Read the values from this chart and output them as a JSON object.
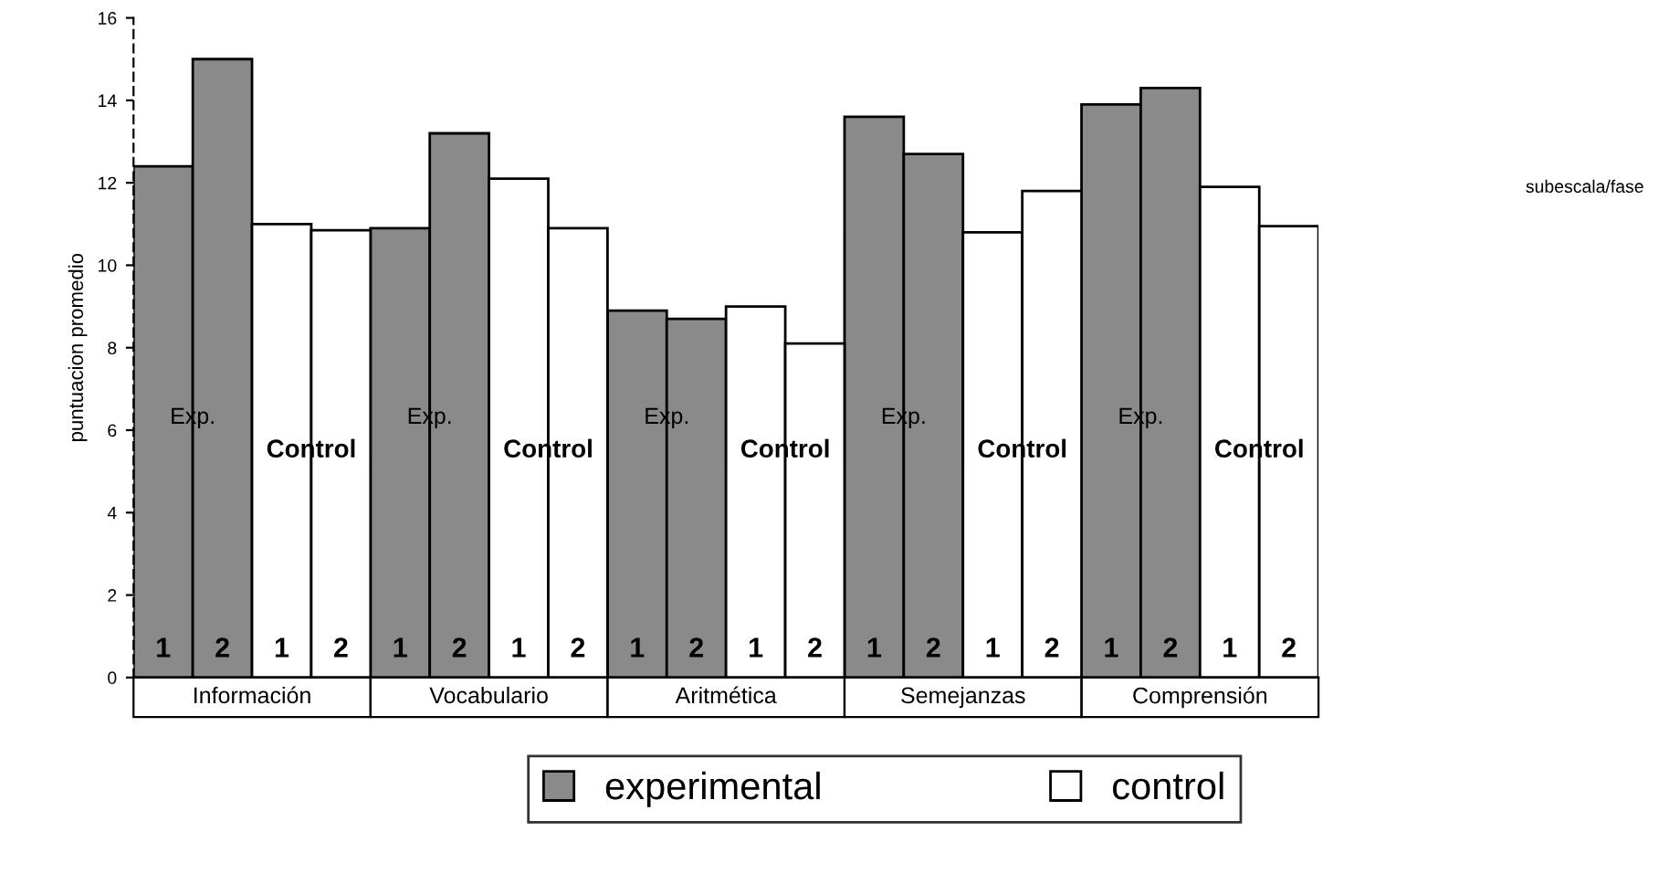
{
  "chart_data": {
    "type": "bar",
    "ylabel": "puntuacion promedio",
    "categories": [
      "1",
      "2",
      "1",
      "2",
      "1",
      "2",
      "1",
      "2",
      "1",
      "2",
      "1",
      "2",
      "1",
      "2",
      "1",
      "2",
      "1",
      "2",
      "1",
      "2"
    ],
    "series": [
      {
        "name": "experimental",
        "color": "#8a8a8a",
        "values": [
          12.4,
          15.0,
          null,
          null,
          10.9,
          13.2,
          null,
          null,
          8.9,
          8.7,
          null,
          null,
          13.6,
          12.7,
          null,
          null,
          13.9,
          14.3,
          null,
          null
        ]
      },
      {
        "name": "control",
        "color": "#ffffff",
        "values": [
          null,
          null,
          11.0,
          10.85,
          null,
          null,
          12.1,
          10.9,
          null,
          null,
          9.0,
          8.1,
          null,
          null,
          10.8,
          11.8,
          null,
          null,
          11.9,
          10.95
        ]
      }
    ],
    "ylim": [
      0,
      16
    ],
    "yticks": [
      0,
      2,
      4,
      6,
      8,
      10,
      12,
      14,
      16
    ],
    "annotations": [
      "Información",
      "Vocabulario",
      "Aritmética",
      "Semejanzas",
      "Comprensión",
      "Exp.",
      "Control",
      "Exp.",
      "Control",
      "Exp.",
      "Control",
      "Exp.",
      "Control",
      "Exp.",
      "Control",
      "subescala/fase"
    ],
    "legend": "bottom",
    "grid": false
  }
}
